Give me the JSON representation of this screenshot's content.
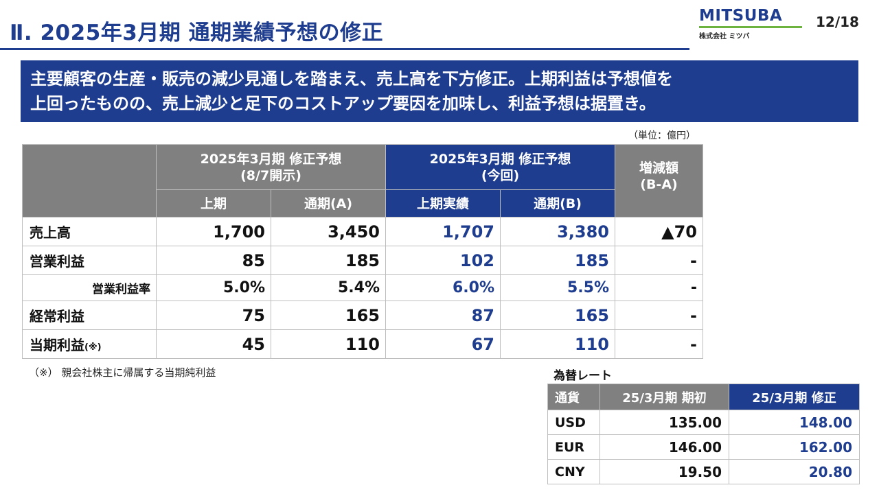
{
  "header": {
    "title": "Ⅱ. 2025年3月期 通期業績予想の修正",
    "logo_word": "MITSUBA",
    "logo_sub": "株式会社 ミツバ",
    "page": "12/18"
  },
  "headline": {
    "line1": "主要顧客の生産・販売の減少見通しを踏まえ、売上高を下方修正。上期利益は予想値を",
    "line2": "上回ったものの、売上減少と足下のコストアップ要因を加味し、利益予想は据置き。"
  },
  "unit": "（単位：億円）",
  "table": {
    "groups": {
      "prev_line1": "2025年3月期 修正予想",
      "prev_line2": "(8/7開示)",
      "curr_line1": "2025年3月期 修正予想",
      "curr_line2": "(今回)",
      "diff_line1": "増減額",
      "diff_line2": "(B-A)"
    },
    "subheaders": [
      "上期",
      "通期(A)",
      "上期実績",
      "通期(B)"
    ],
    "rows": [
      {
        "label": "売上高",
        "note": "",
        "values": [
          "1,700",
          "3,450",
          "1,707",
          "3,380",
          "▲70"
        ]
      },
      {
        "label": "営業利益",
        "note": "",
        "values": [
          "85",
          "185",
          "102",
          "185",
          "-"
        ]
      },
      {
        "label": "営業利益率",
        "note": "",
        "values": [
          "5.0%",
          "5.4%",
          "6.0%",
          "5.5%",
          "-"
        ]
      },
      {
        "label": "経常利益",
        "note": "",
        "values": [
          "75",
          "165",
          "87",
          "165",
          "-"
        ]
      },
      {
        "label": "当期利益",
        "note": "(※)",
        "values": [
          "45",
          "110",
          "67",
          "110",
          "-"
        ]
      }
    ]
  },
  "footnote": "（※） 親会社株主に帰属する当期純利益",
  "fx": {
    "title": "為替レート",
    "headers": [
      "通貨",
      "25/3月期 期初",
      "25/3月期 修正"
    ],
    "rows": [
      {
        "currency": "USD",
        "initial": "135.00",
        "revised": "148.00"
      },
      {
        "currency": "EUR",
        "initial": "146.00",
        "revised": "162.00"
      },
      {
        "currency": "CNY",
        "initial": "19.50",
        "revised": "20.80"
      }
    ]
  },
  "colors": {
    "brand_navy": "#1f3d8f",
    "header_gray": "#808080",
    "logo_green": "#6cb33f"
  }
}
